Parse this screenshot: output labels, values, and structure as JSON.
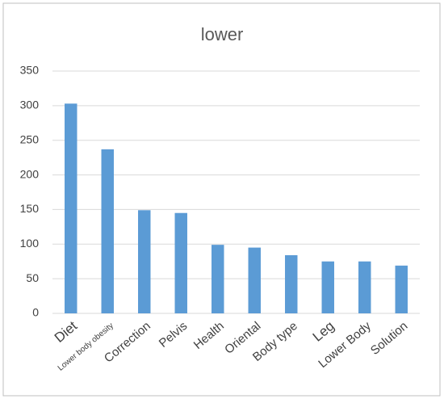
{
  "chart_data": {
    "type": "bar",
    "title": "lower",
    "categories": [
      "Diet",
      "Lower body obesity",
      "Correction",
      "Pelvis",
      "Health",
      "Oriental",
      "Body type",
      "Leg",
      "Lower Body",
      "Solution"
    ],
    "values": [
      303,
      237,
      149,
      145,
      99,
      95,
      84,
      75,
      75,
      69
    ],
    "color": "#5b9bd5",
    "ylim": [
      0,
      350
    ],
    "yticks": [
      0,
      50,
      100,
      150,
      200,
      250,
      300,
      350
    ],
    "grid": true
  }
}
